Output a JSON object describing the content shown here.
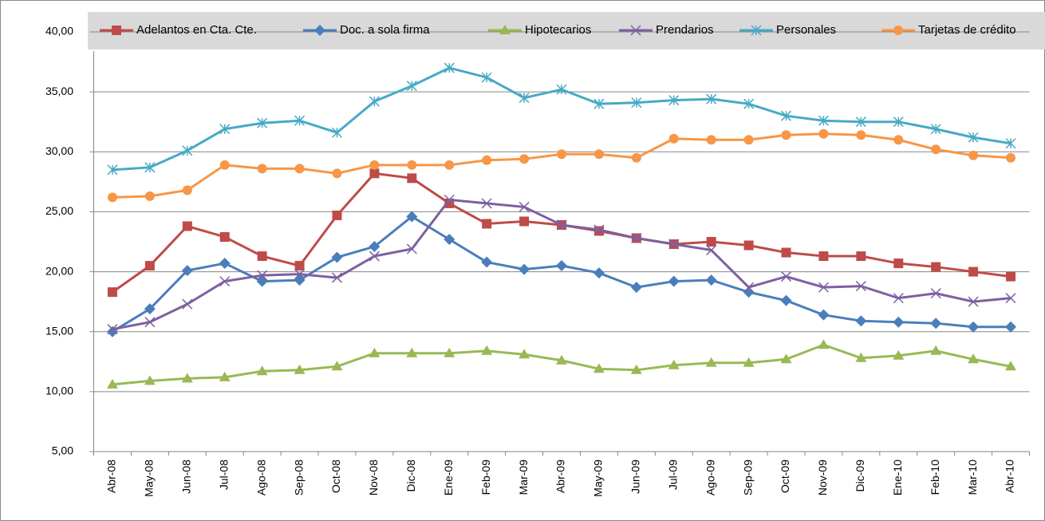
{
  "chart_data": {
    "type": "line",
    "categories": [
      "Abr-08",
      "May-08",
      "Jun-08",
      "Jul-08",
      "Ago-08",
      "Sep-08",
      "Oct-08",
      "Nov-08",
      "Dic-08",
      "Ene-09",
      "Feb-09",
      "Mar-09",
      "Abr-09",
      "May-09",
      "Jun-09",
      "Jul-09",
      "Ago-09",
      "Sep-09",
      "Oct-09",
      "Nov-09",
      "Dic-09",
      "Ene-10",
      "Feb-10",
      "Mar-10",
      "Abr-10"
    ],
    "series": [
      {
        "name": "Adelantos en Cta. Cte.",
        "color": "#be4b48",
        "marker": "square",
        "values": [
          18.3,
          20.5,
          23.8,
          22.9,
          21.3,
          20.5,
          24.7,
          28.2,
          27.8,
          25.7,
          24.0,
          24.2,
          23.9,
          23.4,
          22.8,
          22.3,
          22.5,
          22.2,
          21.6,
          21.3,
          21.3,
          20.7,
          20.4,
          20.0,
          19.6
        ]
      },
      {
        "name": "Doc. a sola firma",
        "color": "#4a7ebb",
        "marker": "diamond",
        "values": [
          15.0,
          16.9,
          20.1,
          20.7,
          19.2,
          19.3,
          21.2,
          22.1,
          24.6,
          22.7,
          20.8,
          20.2,
          20.5,
          19.9,
          18.7,
          19.2,
          19.3,
          18.3,
          17.6,
          16.4,
          15.9,
          15.8,
          15.7,
          15.4,
          15.4
        ]
      },
      {
        "name": "Hipotecarios",
        "color": "#98b954",
        "marker": "triangle",
        "values": [
          10.6,
          10.9,
          11.1,
          11.2,
          11.7,
          11.8,
          12.1,
          13.2,
          13.2,
          13.2,
          13.4,
          13.1,
          12.6,
          11.9,
          11.8,
          12.2,
          12.4,
          12.4,
          12.7,
          13.9,
          12.8,
          13.0,
          13.4,
          12.7,
          12.1
        ]
      },
      {
        "name": "Prendarios",
        "color": "#7d60a0",
        "marker": "x",
        "values": [
          15.2,
          15.8,
          17.3,
          19.2,
          19.7,
          19.8,
          19.5,
          21.3,
          21.9,
          26.0,
          25.7,
          25.4,
          23.9,
          23.5,
          22.8,
          22.3,
          21.8,
          18.7,
          19.6,
          18.7,
          18.8,
          17.8,
          18.2,
          17.5,
          17.8
        ]
      },
      {
        "name": "Personales",
        "color": "#46aac5",
        "marker": "asterisk",
        "values": [
          28.5,
          28.7,
          30.1,
          31.9,
          32.4,
          32.6,
          31.6,
          34.2,
          35.5,
          37.0,
          36.2,
          34.5,
          35.2,
          34.0,
          34.1,
          34.3,
          34.4,
          34.0,
          33.0,
          32.6,
          32.5,
          32.5,
          31.9,
          31.2,
          30.7
        ]
      },
      {
        "name": "Tarjetas de crédito",
        "color": "#f79646",
        "marker": "circle",
        "values": [
          26.2,
          26.3,
          26.8,
          28.9,
          28.6,
          28.6,
          28.2,
          28.9,
          28.9,
          28.9,
          29.3,
          29.4,
          29.8,
          29.8,
          29.5,
          31.1,
          31.0,
          31.0,
          31.4,
          31.5,
          31.4,
          31.0,
          30.2,
          29.7,
          29.5
        ]
      }
    ],
    "ylim": [
      5,
      40
    ],
    "yticks": [
      {
        "value": 5,
        "label": "5,00"
      },
      {
        "value": 10,
        "label": "10,00"
      },
      {
        "value": 15,
        "label": "15,00"
      },
      {
        "value": 20,
        "label": "20,00"
      },
      {
        "value": 25,
        "label": "25,00"
      },
      {
        "value": 30,
        "label": "30,00"
      },
      {
        "value": 35,
        "label": "35,00"
      },
      {
        "value": 40,
        "label": "40,00"
      }
    ],
    "grid": true,
    "legend": "top"
  }
}
